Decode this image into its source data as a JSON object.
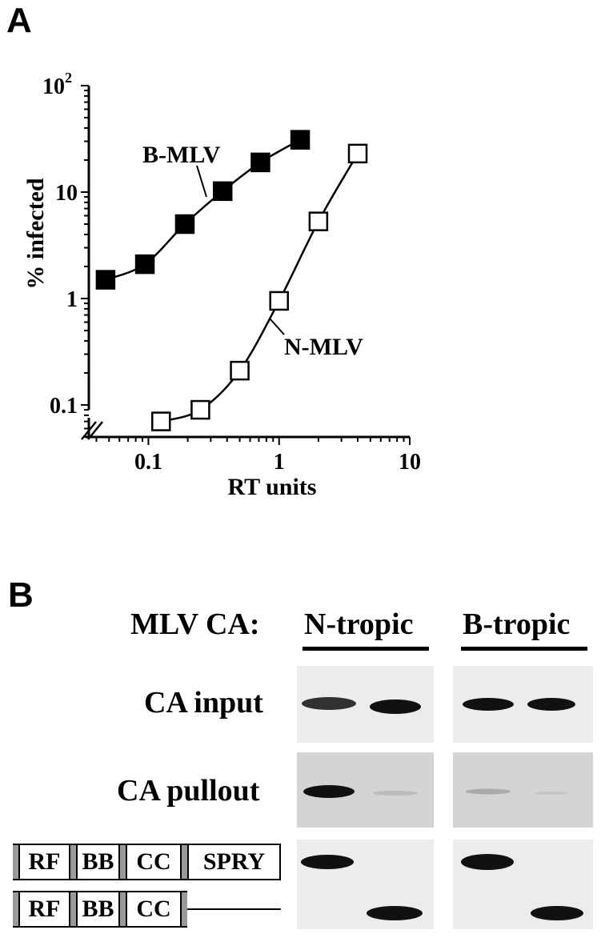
{
  "panels": {
    "a_letter": "A",
    "b_letter": "B"
  },
  "chart_data": {
    "type": "scatter",
    "xscale": "log",
    "yscale": "log",
    "xlabel": "RT units",
    "ylabel": "% infected",
    "xlim": [
      0.035,
      10
    ],
    "ylim": [
      0.05,
      100
    ],
    "x_ticks": [
      "0.1",
      "1",
      "10"
    ],
    "y_ticks": [
      "0.1",
      "1",
      "10"
    ],
    "y_top_tick_base": "10",
    "y_top_tick_exp": "2",
    "series": [
      {
        "name": "B-MLV",
        "marker": "filled-square",
        "x": [
          0.047,
          0.094,
          0.19,
          0.37,
          0.72,
          1.45
        ],
        "y": [
          1.5,
          2.1,
          5.0,
          10.2,
          19,
          31
        ]
      },
      {
        "name": "N-MLV",
        "marker": "open-square",
        "x": [
          0.125,
          0.25,
          0.5,
          1.0,
          2.0,
          4.0
        ],
        "y": [
          0.07,
          0.09,
          0.21,
          0.95,
          5.3,
          23
        ]
      }
    ]
  },
  "blot": {
    "header_label": "MLV CA:",
    "group_labels": [
      "N-tropic",
      "B-tropic"
    ],
    "rows": [
      {
        "label": "CA input"
      },
      {
        "label": "CA pullout"
      }
    ],
    "constructs": [
      {
        "domains": [
          "RF",
          "BB",
          "CC",
          "SPRY"
        ]
      },
      {
        "domains": [
          "RF",
          "BB",
          "CC"
        ]
      }
    ],
    "colors": {
      "membrane_light": "#ececec",
      "membrane_dark": "#d4d4d4",
      "band": "#111111"
    }
  }
}
